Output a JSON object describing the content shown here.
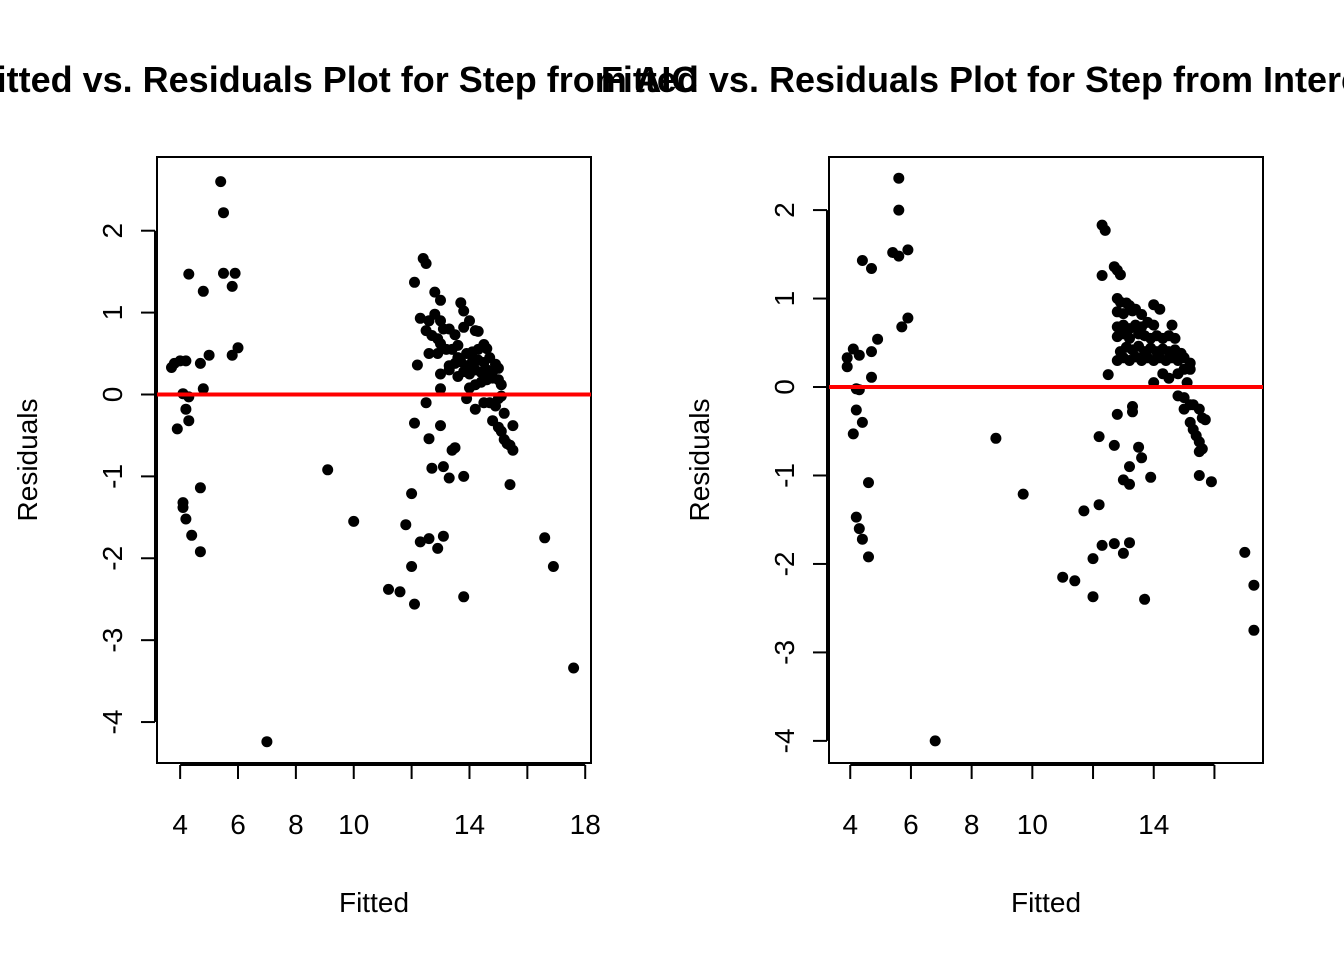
{
  "chart_data": [
    {
      "type": "scatter",
      "title": "Fitted vs. Residuals Plot for Step from AIC",
      "xlabel": "Fitted",
      "ylabel": "Residuals",
      "xlim": [
        3.2,
        18.2
      ],
      "ylim": [
        -4.5,
        2.9
      ],
      "x_ticks": [
        4,
        6,
        8,
        10,
        12,
        14,
        16,
        18
      ],
      "x_tick_labels": [
        "4",
        "6",
        "8",
        "10",
        "",
        "14",
        "",
        "18"
      ],
      "y_ticks": [
        -4,
        -3,
        -2,
        -1,
        0,
        1,
        2
      ],
      "y_tick_labels": [
        "-4",
        "-3",
        "-2",
        "-1",
        "0",
        "1",
        "2"
      ],
      "hline": {
        "y": 0,
        "color": "#ff0000"
      },
      "point_color": "#000000",
      "points": [
        [
          5.4,
          2.6
        ],
        [
          5.5,
          2.22
        ],
        [
          5.5,
          1.48
        ],
        [
          5.9,
          1.48
        ],
        [
          5.8,
          1.32
        ],
        [
          4.3,
          1.47
        ],
        [
          4.8,
          1.26
        ],
        [
          5.0,
          0.48
        ],
        [
          5.8,
          0.48
        ],
        [
          6.0,
          0.57
        ],
        [
          3.7,
          0.33
        ],
        [
          3.8,
          0.38
        ],
        [
          4.0,
          0.41
        ],
        [
          4.2,
          0.41
        ],
        [
          4.7,
          0.38
        ],
        [
          4.8,
          0.07
        ],
        [
          4.1,
          0.01
        ],
        [
          4.3,
          -0.03
        ],
        [
          4.2,
          -0.18
        ],
        [
          4.3,
          -0.32
        ],
        [
          3.9,
          -0.42
        ],
        [
          4.7,
          -1.14
        ],
        [
          4.1,
          -1.32
        ],
        [
          4.1,
          -1.38
        ],
        [
          4.2,
          -1.52
        ],
        [
          4.4,
          -1.72
        ],
        [
          4.7,
          -1.92
        ],
        [
          7.0,
          -4.24
        ],
        [
          9.1,
          -0.92
        ],
        [
          10.0,
          -1.55
        ],
        [
          11.2,
          -2.38
        ],
        [
          11.6,
          -2.41
        ],
        [
          11.8,
          -1.59
        ],
        [
          12.0,
          -1.21
        ],
        [
          12.0,
          -2.1
        ],
        [
          12.1,
          -2.56
        ],
        [
          12.1,
          -0.35
        ],
        [
          12.3,
          -1.8
        ],
        [
          12.6,
          -1.76
        ],
        [
          12.6,
          -0.54
        ],
        [
          12.7,
          -0.9
        ],
        [
          12.9,
          -1.88
        ],
        [
          13.1,
          -1.73
        ],
        [
          13.0,
          -0.38
        ],
        [
          13.1,
          -0.88
        ],
        [
          13.3,
          -1.02
        ],
        [
          13.4,
          -0.68
        ],
        [
          13.5,
          -0.65
        ],
        [
          13.8,
          -2.47
        ],
        [
          13.8,
          -1.0
        ],
        [
          12.5,
          -0.1
        ],
        [
          12.2,
          0.36
        ],
        [
          12.4,
          1.66
        ],
        [
          12.5,
          1.6
        ],
        [
          12.1,
          1.37
        ],
        [
          12.8,
          1.25
        ],
        [
          13.0,
          1.15
        ],
        [
          12.3,
          0.93
        ],
        [
          12.6,
          0.9
        ],
        [
          12.8,
          0.98
        ],
        [
          13.0,
          0.9
        ],
        [
          12.5,
          0.78
        ],
        [
          12.7,
          0.72
        ],
        [
          12.9,
          0.68
        ],
        [
          13.1,
          0.8
        ],
        [
          13.3,
          0.8
        ],
        [
          13.5,
          0.73
        ],
        [
          12.6,
          0.5
        ],
        [
          12.9,
          0.5
        ],
        [
          13.2,
          0.55
        ],
        [
          13.0,
          0.62
        ],
        [
          13.4,
          0.55
        ],
        [
          13.6,
          0.6
        ],
        [
          13.7,
          1.12
        ],
        [
          13.8,
          1.02
        ],
        [
          14.0,
          0.9
        ],
        [
          13.8,
          0.82
        ],
        [
          14.2,
          0.78
        ],
        [
          14.3,
          0.77
        ],
        [
          13.6,
          0.45
        ],
        [
          13.9,
          0.5
        ],
        [
          14.1,
          0.52
        ],
        [
          14.3,
          0.55
        ],
        [
          14.5,
          0.61
        ],
        [
          14.6,
          0.56
        ],
        [
          13.3,
          0.35
        ],
        [
          13.5,
          0.38
        ],
        [
          13.7,
          0.4
        ],
        [
          13.9,
          0.35
        ],
        [
          14.1,
          0.4
        ],
        [
          14.3,
          0.42
        ],
        [
          14.5,
          0.39
        ],
        [
          14.7,
          0.45
        ],
        [
          14.9,
          0.37
        ],
        [
          13.0,
          0.25
        ],
        [
          13.3,
          0.3
        ],
        [
          13.6,
          0.22
        ],
        [
          13.8,
          0.28
        ],
        [
          14.0,
          0.25
        ],
        [
          14.2,
          0.3
        ],
        [
          14.4,
          0.27
        ],
        [
          14.6,
          0.3
        ],
        [
          14.8,
          0.28
        ],
        [
          15.0,
          0.32
        ],
        [
          13.0,
          0.07
        ],
        [
          14.0,
          0.08
        ],
        [
          14.2,
          0.12
        ],
        [
          14.4,
          0.15
        ],
        [
          14.6,
          0.18
        ],
        [
          14.8,
          0.2
        ],
        [
          15.0,
          0.18
        ],
        [
          15.1,
          0.12
        ],
        [
          14.2,
          -0.18
        ],
        [
          14.5,
          -0.1
        ],
        [
          14.7,
          -0.1
        ],
        [
          14.9,
          -0.14
        ],
        [
          15.0,
          -0.05
        ],
        [
          15.1,
          -0.02
        ],
        [
          13.9,
          -0.05
        ],
        [
          14.8,
          -0.32
        ],
        [
          15.0,
          -0.4
        ],
        [
          15.1,
          -0.45
        ],
        [
          15.2,
          -0.23
        ],
        [
          15.2,
          -0.55
        ],
        [
          15.3,
          -0.6
        ],
        [
          15.4,
          -0.62
        ],
        [
          15.5,
          -0.38
        ],
        [
          15.5,
          -0.68
        ],
        [
          15.4,
          -1.1
        ],
        [
          16.6,
          -1.75
        ],
        [
          16.9,
          -2.1
        ],
        [
          17.6,
          -3.34
        ]
      ]
    },
    {
      "type": "scatter",
      "title": "Fitted vs. Residuals Plot for Step from Intercept",
      "xlabel": "Fitted",
      "ylabel": "Residuals",
      "xlim": [
        3.3,
        17.6
      ],
      "ylim": [
        -4.25,
        2.6
      ],
      "x_ticks": [
        4,
        6,
        8,
        10,
        12,
        14,
        16
      ],
      "x_tick_labels": [
        "4",
        "6",
        "8",
        "10",
        "",
        "14",
        ""
      ],
      "y_ticks": [
        -4,
        -3,
        -2,
        -1,
        0,
        1,
        2
      ],
      "y_tick_labels": [
        "-4",
        "-3",
        "-2",
        "-1",
        "0",
        "1",
        "2"
      ],
      "hline": {
        "y": 0,
        "color": "#ff0000"
      },
      "point_color": "#000000",
      "points": [
        [
          5.6,
          2.36
        ],
        [
          5.6,
          2.0
        ],
        [
          5.4,
          1.52
        ],
        [
          5.6,
          1.48
        ],
        [
          5.9,
          1.55
        ],
        [
          4.4,
          1.43
        ],
        [
          4.7,
          1.34
        ],
        [
          5.9,
          0.78
        ],
        [
          5.7,
          0.68
        ],
        [
          4.9,
          0.54
        ],
        [
          3.9,
          0.33
        ],
        [
          3.9,
          0.23
        ],
        [
          4.1,
          0.43
        ],
        [
          4.3,
          0.36
        ],
        [
          4.7,
          0.4
        ],
        [
          4.7,
          0.11
        ],
        [
          4.2,
          -0.02
        ],
        [
          4.3,
          -0.03
        ],
        [
          4.2,
          -0.26
        ],
        [
          4.4,
          -0.4
        ],
        [
          4.1,
          -0.53
        ],
        [
          4.6,
          -1.08
        ],
        [
          4.2,
          -1.47
        ],
        [
          4.3,
          -1.6
        ],
        [
          4.4,
          -1.72
        ],
        [
          4.6,
          -1.92
        ],
        [
          6.8,
          -4.0
        ],
        [
          8.8,
          -0.58
        ],
        [
          9.7,
          -1.21
        ],
        [
          11.0,
          -2.15
        ],
        [
          11.4,
          -2.19
        ],
        [
          11.7,
          -1.4
        ],
        [
          12.0,
          -1.94
        ],
        [
          12.0,
          -2.37
        ],
        [
          12.2,
          -1.33
        ],
        [
          12.2,
          -0.56
        ],
        [
          12.3,
          -1.79
        ],
        [
          12.7,
          -1.77
        ],
        [
          12.7,
          -0.66
        ],
        [
          12.8,
          -0.31
        ],
        [
          13.0,
          -1.88
        ],
        [
          13.2,
          -1.76
        ],
        [
          13.2,
          -1.1
        ],
        [
          13.3,
          -0.22
        ],
        [
          13.3,
          -0.28
        ],
        [
          13.5,
          -0.68
        ],
        [
          13.6,
          -0.8
        ],
        [
          13.7,
          -2.4
        ],
        [
          13.9,
          -1.02
        ],
        [
          13.2,
          -0.9
        ],
        [
          13.0,
          -1.05
        ],
        [
          12.3,
          1.83
        ],
        [
          12.4,
          1.77
        ],
        [
          12.7,
          1.36
        ],
        [
          12.8,
          1.32
        ],
        [
          12.3,
          1.26
        ],
        [
          12.9,
          1.27
        ],
        [
          12.8,
          1.0
        ],
        [
          12.9,
          0.96
        ],
        [
          13.1,
          0.95
        ],
        [
          13.2,
          0.92
        ],
        [
          13.4,
          0.88
        ],
        [
          13.6,
          0.82
        ],
        [
          12.8,
          0.85
        ],
        [
          13.0,
          0.83
        ],
        [
          13.3,
          0.86
        ],
        [
          14.0,
          0.93
        ],
        [
          14.2,
          0.88
        ],
        [
          12.8,
          0.68
        ],
        [
          13.0,
          0.7
        ],
        [
          13.2,
          0.66
        ],
        [
          13.4,
          0.7
        ],
        [
          13.6,
          0.68
        ],
        [
          13.8,
          0.73
        ],
        [
          14.0,
          0.7
        ],
        [
          14.6,
          0.7
        ],
        [
          12.8,
          0.57
        ],
        [
          13.0,
          0.6
        ],
        [
          13.2,
          0.55
        ],
        [
          13.5,
          0.6
        ],
        [
          13.7,
          0.58
        ],
        [
          13.9,
          0.55
        ],
        [
          14.1,
          0.58
        ],
        [
          14.3,
          0.55
        ],
        [
          14.5,
          0.58
        ],
        [
          14.7,
          0.55
        ],
        [
          12.9,
          0.4
        ],
        [
          13.1,
          0.45
        ],
        [
          13.3,
          0.42
        ],
        [
          13.5,
          0.46
        ],
        [
          13.7,
          0.4
        ],
        [
          13.9,
          0.44
        ],
        [
          14.1,
          0.4
        ],
        [
          14.3,
          0.43
        ],
        [
          14.5,
          0.4
        ],
        [
          14.7,
          0.42
        ],
        [
          14.9,
          0.38
        ],
        [
          12.8,
          0.3
        ],
        [
          13.0,
          0.33
        ],
        [
          13.2,
          0.3
        ],
        [
          13.4,
          0.34
        ],
        [
          13.6,
          0.3
        ],
        [
          13.8,
          0.33
        ],
        [
          14.0,
          0.3
        ],
        [
          14.2,
          0.33
        ],
        [
          14.4,
          0.3
        ],
        [
          14.6,
          0.33
        ],
        [
          14.8,
          0.3
        ],
        [
          15.0,
          0.33
        ],
        [
          15.2,
          0.27
        ],
        [
          12.5,
          0.14
        ],
        [
          14.0,
          0.05
        ],
        [
          14.3,
          0.15
        ],
        [
          14.5,
          0.1
        ],
        [
          14.8,
          0.15
        ],
        [
          15.0,
          0.2
        ],
        [
          15.2,
          0.2
        ],
        [
          15.1,
          0.05
        ],
        [
          14.8,
          -0.1
        ],
        [
          15.0,
          -0.12
        ],
        [
          15.2,
          -0.2
        ],
        [
          15.3,
          -0.2
        ],
        [
          15.5,
          -0.25
        ],
        [
          15.6,
          -0.35
        ],
        [
          15.7,
          -0.37
        ],
        [
          15.0,
          -0.25
        ],
        [
          15.2,
          -0.4
        ],
        [
          15.3,
          -0.48
        ],
        [
          15.4,
          -0.55
        ],
        [
          15.5,
          -0.62
        ],
        [
          15.6,
          -0.7
        ],
        [
          15.5,
          -0.73
        ],
        [
          15.5,
          -1.0
        ],
        [
          15.9,
          -1.07
        ],
        [
          17.0,
          -1.87
        ],
        [
          17.3,
          -2.24
        ],
        [
          17.3,
          -2.75
        ]
      ]
    }
  ]
}
